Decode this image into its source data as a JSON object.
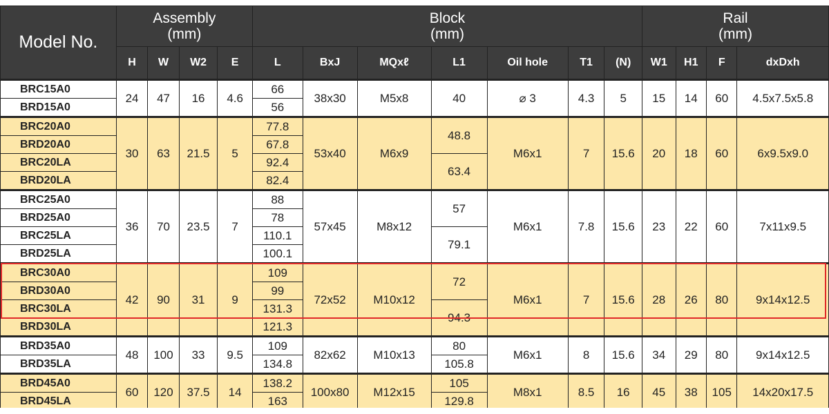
{
  "header": {
    "model_no": "Model No.",
    "assembly": "Assembly",
    "assembly_unit": "(mm)",
    "block": "Block",
    "block_unit": "(mm)",
    "rail": "Rail",
    "rail_unit": "(mm)",
    "cols": [
      "H",
      "W",
      "W2",
      "E",
      "L",
      "BxJ",
      "MQxℓ",
      "L1",
      "Oil hole",
      "T1",
      "(N)",
      "W1",
      "H1",
      "F",
      "dxDxh"
    ]
  },
  "groups": [
    {
      "models": [
        "BRC15A0",
        "BRD15A0"
      ],
      "L": [
        "66",
        "56"
      ],
      "L1": [
        "40"
      ],
      "H": "24",
      "W": "47",
      "W2": "16",
      "E": "4.6",
      "BxJ": "38x30",
      "MQ": "M5x8",
      "oil": "⌀ 3",
      "T1": "4.3",
      "N": "5",
      "W1": "15",
      "H1": "14",
      "F": "60",
      "dxDxh": "4.5x7.5x5.8"
    },
    {
      "models": [
        "BRC20A0",
        "BRD20A0",
        "BRC20LA",
        "BRD20LA"
      ],
      "L": [
        "77.8",
        "67.8",
        "92.4",
        "82.4"
      ],
      "L1": [
        "48.8",
        "63.4"
      ],
      "H": "30",
      "W": "63",
      "W2": "21.5",
      "E": "5",
      "BxJ": "53x40",
      "MQ": "M6x9",
      "oil": "M6x1",
      "T1": "7",
      "N": "15.6",
      "W1": "20",
      "H1": "18",
      "F": "60",
      "dxDxh": "6x9.5x9.0"
    },
    {
      "models": [
        "BRC25A0",
        "BRD25A0",
        "BRC25LA",
        "BRD25LA"
      ],
      "L": [
        "88",
        "78",
        "110.1",
        "100.1"
      ],
      "L1": [
        "57",
        "79.1"
      ],
      "H": "36",
      "W": "70",
      "W2": "23.5",
      "E": "7",
      "BxJ": "57x45",
      "MQ": "M8x12",
      "oil": "M6x1",
      "T1": "7.8",
      "N": "15.6",
      "W1": "23",
      "H1": "22",
      "F": "60",
      "dxDxh": "7x11x9.5"
    },
    {
      "models": [
        "BRC30A0",
        "BRD30A0",
        "BRC30LA",
        "BRD30LA"
      ],
      "L": [
        "109",
        "99",
        "131.3",
        "121.3"
      ],
      "L1": [
        "72",
        "94.3"
      ],
      "H": "42",
      "W": "90",
      "W2": "31",
      "E": "9",
      "BxJ": "72x52",
      "MQ": "M10x12",
      "oil": "M6x1",
      "T1": "7",
      "N": "15.6",
      "W1": "28",
      "H1": "26",
      "F": "80",
      "dxDxh": "9x14x12.5"
    },
    {
      "models": [
        "BRD35A0",
        "BRD35LA"
      ],
      "L": [
        "109",
        "134.8"
      ],
      "L1": [
        "80",
        "105.8"
      ],
      "H": "48",
      "W": "100",
      "W2": "33",
      "E": "9.5",
      "BxJ": "82x62",
      "MQ": "M10x13",
      "oil": "M6x1",
      "T1": "8",
      "N": "15.6",
      "W1": "34",
      "H1": "29",
      "F": "80",
      "dxDxh": "9x14x12.5"
    },
    {
      "models": [
        "BRD45A0",
        "BRD45LA"
      ],
      "L": [
        "138.2",
        "163"
      ],
      "L1": [
        "105",
        "129.8"
      ],
      "H": "60",
      "W": "120",
      "W2": "37.5",
      "E": "14",
      "BxJ": "100x80",
      "MQ": "M12x15",
      "oil": "M8x1",
      "T1": "8.5",
      "N": "16",
      "W1": "45",
      "H1": "38",
      "F": "105",
      "dxDxh": "14x20x17.5"
    }
  ],
  "highlight": {
    "group": 3,
    "rows": 3,
    "color": "#e02828"
  },
  "colors": {
    "header_bg": "#3d3d3d",
    "header_text": "#ffffff",
    "row_yellow": "#fde7a9",
    "row_white": "#ffffff",
    "highlight": "#e02828"
  }
}
